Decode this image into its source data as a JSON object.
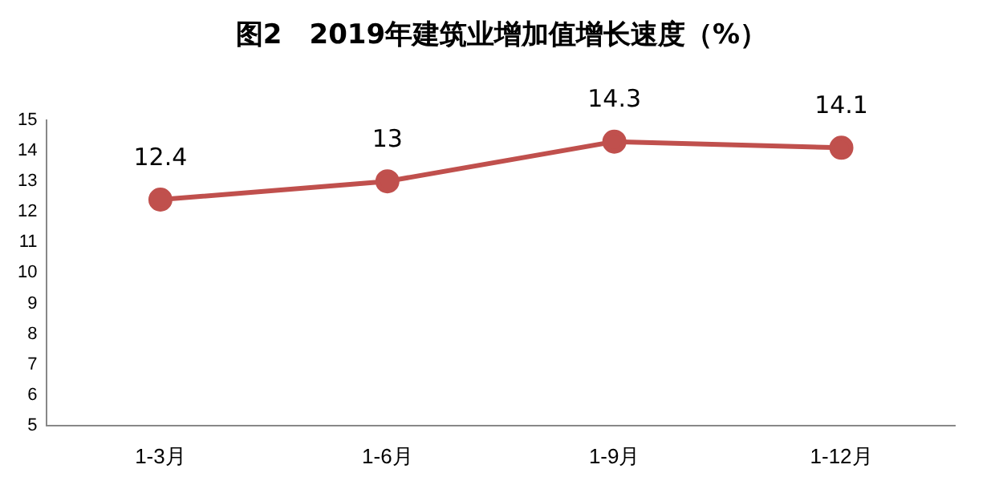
{
  "chart_data": {
    "type": "line",
    "title": "图2　2019年建筑业增加值增长速度（%）",
    "categories": [
      "1-3月",
      "1-6月",
      "1-9月",
      "1-12月"
    ],
    "series": [
      {
        "color": "#c0504d",
        "values": [
          12.4,
          13,
          14.3,
          14.1
        ]
      }
    ],
    "ylim": [
      5,
      15
    ],
    "yticks": [
      5,
      6,
      7,
      8,
      9,
      10,
      11,
      12,
      13,
      14,
      15
    ],
    "grid": false,
    "legend": false,
    "marker": "circle",
    "line_style": "solid",
    "data_labels": true
  }
}
